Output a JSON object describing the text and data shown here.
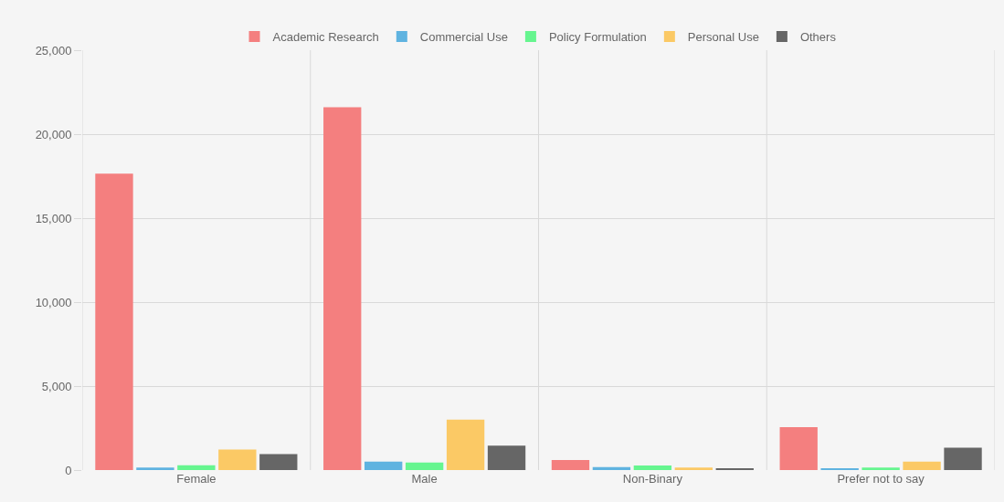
{
  "chart_data": {
    "type": "bar",
    "categories": [
      "Female",
      "Male",
      "Non-Binary",
      "Prefer not to say"
    ],
    "series": [
      {
        "name": "Academic Research",
        "color": "#f47f7f",
        "values": [
          17650,
          21600,
          600,
          2550
        ]
      },
      {
        "name": "Commercial Use",
        "color": "#5fb3e0",
        "values": [
          150,
          500,
          170,
          60
        ]
      },
      {
        "name": "Policy Formulation",
        "color": "#66f58f",
        "values": [
          280,
          450,
          270,
          150
        ]
      },
      {
        "name": "Personal Use",
        "color": "#fbc965",
        "values": [
          1220,
          3000,
          150,
          500
        ]
      },
      {
        "name": "Others",
        "color": "#666666",
        "values": [
          950,
          1450,
          80,
          1330
        ]
      }
    ],
    "ylim": [
      0,
      25000
    ],
    "yticks": [
      0,
      {
        "value": 5000,
        "label": "5,000"
      },
      {
        "value": 10000,
        "label": "10,000"
      },
      {
        "value": 15000,
        "label": "15,000"
      },
      {
        "value": 20000,
        "label": "20,000"
      },
      {
        "value": 25000,
        "label": "25,000"
      }
    ],
    "grid": true,
    "legend": "top"
  }
}
